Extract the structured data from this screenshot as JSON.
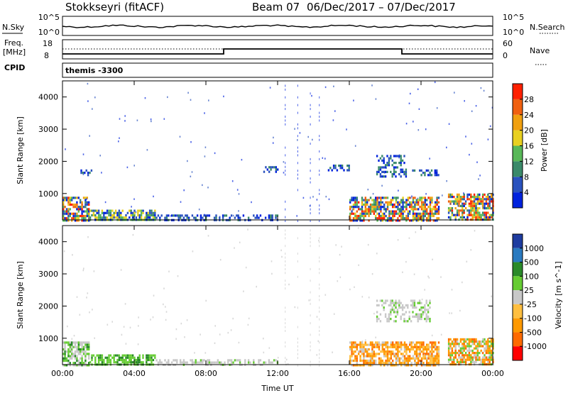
{
  "header": {
    "station": "Stokkseyri (fitACF)",
    "beam": "Beam 07",
    "date_range": "06/Dec/2017 – 07/Dec/2017"
  },
  "noise_panel": {
    "left_label": "N.Sky",
    "left_ticks": [
      "10^5",
      "10^0"
    ],
    "right_ticks": [
      "10^5",
      "10^0"
    ],
    "right_label": "N.Search"
  },
  "freq_panel": {
    "left_label_1": "Freq.",
    "left_label_2": "[MHz]",
    "left_ticks": [
      "18",
      "8"
    ],
    "right_ticks": [
      "60",
      "0"
    ],
    "right_label": "Nave",
    "cpid_label": "CPID"
  },
  "cpid_panel": {
    "text": "themis -3300"
  },
  "colors": {
    "power": [
      "#0022dd",
      "#2a52be",
      "#3a8a6a",
      "#58b858",
      "#e8d020",
      "#f0a010",
      "#f06010",
      "#ff2000"
    ],
    "velocity": [
      "#ff0000",
      "#ff6a00",
      "#ff9900",
      "#ffbf40",
      "#c8c8c8",
      "#66cc33",
      "#2a8a2a",
      "#2a7ac0",
      "#1e3ca0"
    ]
  },
  "chart_data": [
    {
      "type": "heatmap",
      "title": "",
      "xlabel": "",
      "ylabel": "Slant Range [km]",
      "x_ticks": [
        "00:00",
        "04:00",
        "08:00",
        "12:00",
        "16:00",
        "20:00",
        "00:00"
      ],
      "x_range_hours": [
        0,
        24
      ],
      "y_ticks": [
        1000,
        2000,
        3000,
        4000
      ],
      "ylim": [
        180,
        4500
      ],
      "colorbar": {
        "label": "Power [dB]",
        "ticks": [
          4,
          8,
          12,
          16,
          20,
          24,
          28
        ],
        "range": [
          0,
          32
        ]
      },
      "features": [
        {
          "t0": 0.0,
          "t1": 1.5,
          "r0": 180,
          "r1": 900,
          "level": "high"
        },
        {
          "t0": 1.5,
          "t1": 5.2,
          "r0": 180,
          "r1": 500,
          "level": "medium"
        },
        {
          "t0": 5.2,
          "t1": 12.0,
          "r0": 180,
          "r1": 350,
          "level": "low"
        },
        {
          "t0": 1.0,
          "t1": 1.6,
          "r0": 1550,
          "r1": 1750,
          "level": "low"
        },
        {
          "t0": 11.2,
          "t1": 12.0,
          "r0": 1700,
          "r1": 1850,
          "level": "low"
        },
        {
          "t0": 14.8,
          "t1": 16.0,
          "r0": 1750,
          "r1": 1900,
          "level": "low"
        },
        {
          "t0": 16.0,
          "t1": 21.0,
          "r0": 180,
          "r1": 900,
          "level": "high"
        },
        {
          "t0": 17.5,
          "t1": 19.2,
          "r0": 1500,
          "r1": 2200,
          "level": "low"
        },
        {
          "t0": 19.5,
          "t1": 21.0,
          "r0": 1550,
          "r1": 1750,
          "level": "low"
        },
        {
          "t0": 21.5,
          "t1": 24.0,
          "r0": 180,
          "r1": 1000,
          "level": "high"
        }
      ]
    },
    {
      "type": "heatmap",
      "title": "",
      "xlabel": "Time UT",
      "ylabel": "Slant Range [km]",
      "x_ticks": [
        "00:00",
        "04:00",
        "08:00",
        "12:00",
        "16:00",
        "20:00",
        "00:00"
      ],
      "x_range_hours": [
        0,
        24
      ],
      "y_ticks": [
        1000,
        2000,
        3000,
        4000
      ],
      "ylim": [
        180,
        4500
      ],
      "colorbar": {
        "label": "Velocity [m s^-1]",
        "ticks": [
          1000,
          500,
          100,
          25,
          -25,
          -100,
          -500,
          -1000
        ]
      },
      "features": [
        {
          "t0": 0.0,
          "t1": 1.5,
          "r0": 180,
          "r1": 900,
          "level": "mixed-green-grey"
        },
        {
          "t0": 1.5,
          "t1": 5.2,
          "r0": 180,
          "r1": 500,
          "level": "green"
        },
        {
          "t0": 5.2,
          "t1": 12.0,
          "r0": 180,
          "r1": 350,
          "level": "grey"
        },
        {
          "t0": 16.0,
          "t1": 21.0,
          "r0": 180,
          "r1": 900,
          "level": "orange"
        },
        {
          "t0": 17.5,
          "t1": 20.5,
          "r0": 1500,
          "r1": 2200,
          "level": "grey"
        },
        {
          "t0": 21.5,
          "t1": 24.0,
          "r0": 180,
          "r1": 1000,
          "level": "orange-green"
        }
      ]
    }
  ]
}
